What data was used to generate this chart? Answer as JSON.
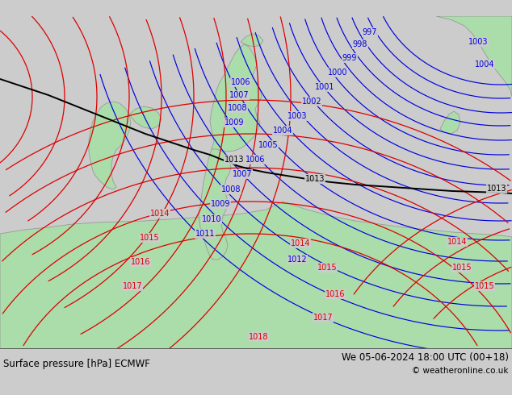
{
  "title_left": "Surface pressure [hPa] ECMWF",
  "title_right": "We 05-06-2024 18:00 UTC (00+18)",
  "copyright": "© weatheronline.co.uk",
  "bg_color": "#cccccc",
  "land_color": "#aaddaa",
  "land_border_color": "#999999",
  "blue_color": "#0000dd",
  "red_color": "#dd0000",
  "black_color": "#000000",
  "label_fontsize": 7,
  "footer_fontsize": 8.5,
  "figsize": [
    6.34,
    4.9
  ],
  "dpi": 100
}
